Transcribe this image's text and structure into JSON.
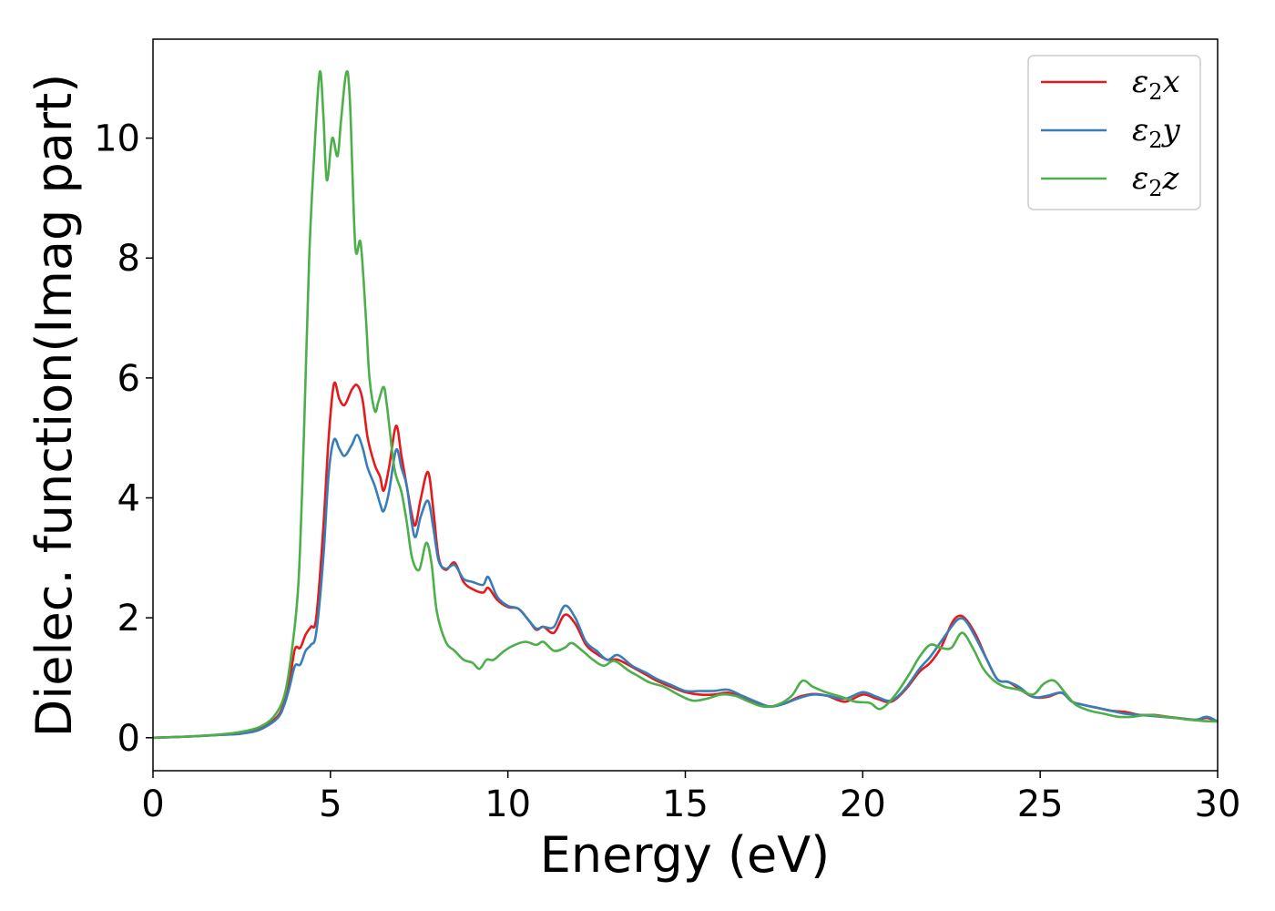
{
  "chart_data": {
    "type": "line",
    "title": "",
    "xlabel": "Energy (eV)",
    "ylabel": "Dielec. function(Imag part)",
    "xlim": [
      0,
      30
    ],
    "ylim": [
      -0.55,
      11.65
    ],
    "xticks": [
      0,
      5,
      10,
      15,
      20,
      25,
      30
    ],
    "yticks": [
      0,
      2,
      4,
      6,
      8,
      10
    ],
    "grid": false,
    "legend_position": "top-right",
    "series": [
      {
        "name": "ε₂x",
        "legend": {
          "main": "ε",
          "sub": "2",
          "tail": "x"
        },
        "color": "#e41a1c",
        "points": [
          [
            0,
            0.0
          ],
          [
            1,
            0.02
          ],
          [
            2,
            0.05
          ],
          [
            2.5,
            0.07
          ],
          [
            3,
            0.14
          ],
          [
            3.5,
            0.35
          ],
          [
            3.7,
            0.6
          ],
          [
            3.85,
            0.95
          ],
          [
            4.0,
            1.48
          ],
          [
            4.15,
            1.5
          ],
          [
            4.3,
            1.72
          ],
          [
            4.45,
            1.85
          ],
          [
            4.6,
            2.0
          ],
          [
            4.8,
            3.5
          ],
          [
            4.95,
            5.0
          ],
          [
            5.1,
            5.9
          ],
          [
            5.25,
            5.65
          ],
          [
            5.4,
            5.55
          ],
          [
            5.6,
            5.8
          ],
          [
            5.75,
            5.88
          ],
          [
            5.9,
            5.65
          ],
          [
            6.05,
            5.0
          ],
          [
            6.25,
            4.55
          ],
          [
            6.4,
            4.35
          ],
          [
            6.5,
            4.12
          ],
          [
            6.65,
            4.5
          ],
          [
            6.85,
            5.2
          ],
          [
            7.0,
            4.7
          ],
          [
            7.15,
            4.2
          ],
          [
            7.3,
            3.7
          ],
          [
            7.4,
            3.55
          ],
          [
            7.55,
            4.0
          ],
          [
            7.75,
            4.43
          ],
          [
            7.9,
            3.8
          ],
          [
            8.05,
            3.0
          ],
          [
            8.25,
            2.8
          ],
          [
            8.5,
            2.92
          ],
          [
            8.75,
            2.6
          ],
          [
            9.0,
            2.48
          ],
          [
            9.3,
            2.42
          ],
          [
            9.45,
            2.5
          ],
          [
            9.7,
            2.3
          ],
          [
            10.0,
            2.18
          ],
          [
            10.3,
            2.15
          ],
          [
            10.6,
            1.95
          ],
          [
            10.8,
            1.8
          ],
          [
            11.0,
            1.85
          ],
          [
            11.3,
            1.75
          ],
          [
            11.6,
            2.05
          ],
          [
            11.9,
            1.9
          ],
          [
            12.2,
            1.55
          ],
          [
            12.5,
            1.4
          ],
          [
            12.8,
            1.3
          ],
          [
            13.1,
            1.3
          ],
          [
            13.5,
            1.18
          ],
          [
            13.9,
            1.05
          ],
          [
            14.2,
            0.95
          ],
          [
            14.6,
            0.85
          ],
          [
            15.0,
            0.76
          ],
          [
            15.4,
            0.72
          ],
          [
            15.8,
            0.72
          ],
          [
            16.2,
            0.75
          ],
          [
            16.6,
            0.68
          ],
          [
            17.0,
            0.58
          ],
          [
            17.4,
            0.52
          ],
          [
            17.8,
            0.57
          ],
          [
            18.2,
            0.68
          ],
          [
            18.6,
            0.73
          ],
          [
            19.0,
            0.7
          ],
          [
            19.5,
            0.6
          ],
          [
            20.0,
            0.72
          ],
          [
            20.4,
            0.65
          ],
          [
            20.8,
            0.6
          ],
          [
            21.2,
            0.8
          ],
          [
            21.6,
            1.1
          ],
          [
            21.9,
            1.25
          ],
          [
            22.2,
            1.5
          ],
          [
            22.5,
            1.9
          ],
          [
            22.7,
            2.03
          ],
          [
            22.9,
            1.98
          ],
          [
            23.2,
            1.7
          ],
          [
            23.5,
            1.3
          ],
          [
            23.8,
            0.97
          ],
          [
            24.1,
            0.93
          ],
          [
            24.4,
            0.82
          ],
          [
            24.8,
            0.68
          ],
          [
            25.2,
            0.68
          ],
          [
            25.6,
            0.75
          ],
          [
            25.9,
            0.6
          ],
          [
            26.2,
            0.55
          ],
          [
            26.6,
            0.5
          ],
          [
            27.0,
            0.45
          ],
          [
            27.4,
            0.43
          ],
          [
            27.8,
            0.38
          ],
          [
            28.2,
            0.38
          ],
          [
            28.6,
            0.35
          ],
          [
            29.0,
            0.32
          ],
          [
            29.4,
            0.3
          ],
          [
            29.7,
            0.33
          ],
          [
            30.0,
            0.27
          ]
        ]
      },
      {
        "name": "ε₂y",
        "legend": {
          "main": "ε",
          "sub": "2",
          "tail": "y"
        },
        "color": "#377eb8",
        "points": [
          [
            0,
            0.0
          ],
          [
            1,
            0.02
          ],
          [
            2,
            0.05
          ],
          [
            2.5,
            0.07
          ],
          [
            3,
            0.13
          ],
          [
            3.5,
            0.32
          ],
          [
            3.7,
            0.55
          ],
          [
            3.85,
            0.85
          ],
          [
            4.0,
            1.2
          ],
          [
            4.15,
            1.22
          ],
          [
            4.3,
            1.45
          ],
          [
            4.45,
            1.55
          ],
          [
            4.6,
            1.75
          ],
          [
            4.8,
            3.0
          ],
          [
            4.95,
            4.4
          ],
          [
            5.1,
            4.97
          ],
          [
            5.25,
            4.82
          ],
          [
            5.4,
            4.7
          ],
          [
            5.6,
            4.88
          ],
          [
            5.75,
            5.05
          ],
          [
            5.9,
            4.85
          ],
          [
            6.05,
            4.5
          ],
          [
            6.25,
            4.2
          ],
          [
            6.4,
            3.9
          ],
          [
            6.5,
            3.78
          ],
          [
            6.65,
            4.1
          ],
          [
            6.85,
            4.8
          ],
          [
            7.0,
            4.5
          ],
          [
            7.15,
            4.2
          ],
          [
            7.3,
            3.55
          ],
          [
            7.4,
            3.35
          ],
          [
            7.55,
            3.7
          ],
          [
            7.75,
            3.95
          ],
          [
            7.9,
            3.5
          ],
          [
            8.05,
            2.95
          ],
          [
            8.25,
            2.82
          ],
          [
            8.5,
            2.88
          ],
          [
            8.75,
            2.65
          ],
          [
            9.0,
            2.6
          ],
          [
            9.3,
            2.55
          ],
          [
            9.45,
            2.68
          ],
          [
            9.7,
            2.35
          ],
          [
            10.0,
            2.2
          ],
          [
            10.3,
            2.15
          ],
          [
            10.6,
            1.95
          ],
          [
            10.8,
            1.82
          ],
          [
            11.0,
            1.85
          ],
          [
            11.3,
            1.85
          ],
          [
            11.6,
            2.2
          ],
          [
            11.9,
            2.0
          ],
          [
            12.2,
            1.6
          ],
          [
            12.5,
            1.45
          ],
          [
            12.8,
            1.3
          ],
          [
            13.1,
            1.38
          ],
          [
            13.5,
            1.2
          ],
          [
            13.9,
            1.08
          ],
          [
            14.2,
            0.98
          ],
          [
            14.6,
            0.88
          ],
          [
            15.0,
            0.78
          ],
          [
            15.4,
            0.78
          ],
          [
            15.8,
            0.78
          ],
          [
            16.2,
            0.8
          ],
          [
            16.6,
            0.7
          ],
          [
            17.0,
            0.6
          ],
          [
            17.4,
            0.52
          ],
          [
            17.8,
            0.57
          ],
          [
            18.2,
            0.66
          ],
          [
            18.6,
            0.72
          ],
          [
            19.0,
            0.7
          ],
          [
            19.5,
            0.65
          ],
          [
            20.0,
            0.76
          ],
          [
            20.4,
            0.68
          ],
          [
            20.8,
            0.62
          ],
          [
            21.2,
            0.82
          ],
          [
            21.6,
            1.15
          ],
          [
            21.9,
            1.35
          ],
          [
            22.2,
            1.6
          ],
          [
            22.5,
            1.85
          ],
          [
            22.7,
            1.98
          ],
          [
            22.9,
            1.95
          ],
          [
            23.2,
            1.65
          ],
          [
            23.5,
            1.3
          ],
          [
            23.8,
            0.97
          ],
          [
            24.1,
            0.93
          ],
          [
            24.4,
            0.85
          ],
          [
            24.8,
            0.68
          ],
          [
            25.2,
            0.7
          ],
          [
            25.6,
            0.75
          ],
          [
            25.9,
            0.6
          ],
          [
            26.2,
            0.55
          ],
          [
            26.6,
            0.5
          ],
          [
            27.0,
            0.45
          ],
          [
            27.4,
            0.4
          ],
          [
            27.8,
            0.38
          ],
          [
            28.2,
            0.36
          ],
          [
            28.6,
            0.34
          ],
          [
            29.0,
            0.32
          ],
          [
            29.4,
            0.3
          ],
          [
            29.7,
            0.35
          ],
          [
            30.0,
            0.27
          ]
        ]
      },
      {
        "name": "ε₂z",
        "legend": {
          "main": "ε",
          "sub": "2",
          "tail": "z"
        },
        "color": "#4daf4a",
        "points": [
          [
            0,
            0.0
          ],
          [
            1,
            0.02
          ],
          [
            2,
            0.06
          ],
          [
            2.5,
            0.1
          ],
          [
            3,
            0.18
          ],
          [
            3.4,
            0.35
          ],
          [
            3.7,
            0.7
          ],
          [
            3.9,
            1.4
          ],
          [
            4.1,
            2.6
          ],
          [
            4.25,
            5.0
          ],
          [
            4.4,
            8.0
          ],
          [
            4.55,
            9.8
          ],
          [
            4.7,
            11.1
          ],
          [
            4.8,
            10.4
          ],
          [
            4.9,
            9.3
          ],
          [
            5.05,
            10.0
          ],
          [
            5.2,
            9.7
          ],
          [
            5.3,
            10.3
          ],
          [
            5.45,
            11.1
          ],
          [
            5.55,
            10.6
          ],
          [
            5.7,
            8.2
          ],
          [
            5.85,
            8.25
          ],
          [
            6.0,
            7.0
          ],
          [
            6.1,
            6.0
          ],
          [
            6.25,
            5.45
          ],
          [
            6.35,
            5.6
          ],
          [
            6.5,
            5.85
          ],
          [
            6.6,
            5.5
          ],
          [
            6.8,
            4.5
          ],
          [
            7.0,
            4.1
          ],
          [
            7.15,
            3.6
          ],
          [
            7.3,
            3.0
          ],
          [
            7.5,
            2.8
          ],
          [
            7.7,
            3.25
          ],
          [
            7.85,
            2.9
          ],
          [
            8.0,
            2.1
          ],
          [
            8.25,
            1.6
          ],
          [
            8.5,
            1.45
          ],
          [
            8.75,
            1.3
          ],
          [
            9.0,
            1.25
          ],
          [
            9.2,
            1.15
          ],
          [
            9.4,
            1.3
          ],
          [
            9.6,
            1.3
          ],
          [
            9.9,
            1.45
          ],
          [
            10.2,
            1.55
          ],
          [
            10.5,
            1.6
          ],
          [
            10.8,
            1.55
          ],
          [
            11.0,
            1.6
          ],
          [
            11.3,
            1.45
          ],
          [
            11.6,
            1.5
          ],
          [
            11.8,
            1.58
          ],
          [
            12.1,
            1.45
          ],
          [
            12.4,
            1.3
          ],
          [
            12.7,
            1.2
          ],
          [
            13.0,
            1.28
          ],
          [
            13.4,
            1.12
          ],
          [
            13.7,
            1.02
          ],
          [
            14.0,
            0.92
          ],
          [
            14.4,
            0.85
          ],
          [
            14.8,
            0.72
          ],
          [
            15.2,
            0.62
          ],
          [
            15.6,
            0.65
          ],
          [
            16.0,
            0.72
          ],
          [
            16.4,
            0.7
          ],
          [
            16.8,
            0.6
          ],
          [
            17.2,
            0.52
          ],
          [
            17.6,
            0.55
          ],
          [
            18.0,
            0.7
          ],
          [
            18.3,
            0.95
          ],
          [
            18.6,
            0.85
          ],
          [
            19.0,
            0.75
          ],
          [
            19.4,
            0.68
          ],
          [
            19.8,
            0.6
          ],
          [
            20.2,
            0.58
          ],
          [
            20.5,
            0.48
          ],
          [
            20.9,
            0.7
          ],
          [
            21.3,
            1.05
          ],
          [
            21.6,
            1.35
          ],
          [
            21.9,
            1.55
          ],
          [
            22.2,
            1.5
          ],
          [
            22.5,
            1.5
          ],
          [
            22.8,
            1.75
          ],
          [
            23.1,
            1.5
          ],
          [
            23.4,
            1.15
          ],
          [
            23.7,
            0.95
          ],
          [
            24.0,
            0.85
          ],
          [
            24.4,
            0.8
          ],
          [
            24.8,
            0.72
          ],
          [
            25.1,
            0.9
          ],
          [
            25.4,
            0.95
          ],
          [
            25.7,
            0.75
          ],
          [
            26.0,
            0.55
          ],
          [
            26.4,
            0.45
          ],
          [
            26.8,
            0.4
          ],
          [
            27.2,
            0.35
          ],
          [
            27.6,
            0.35
          ],
          [
            28.0,
            0.38
          ],
          [
            28.4,
            0.36
          ],
          [
            28.8,
            0.33
          ],
          [
            29.2,
            0.3
          ],
          [
            29.6,
            0.28
          ],
          [
            30.0,
            0.27
          ]
        ]
      }
    ]
  }
}
